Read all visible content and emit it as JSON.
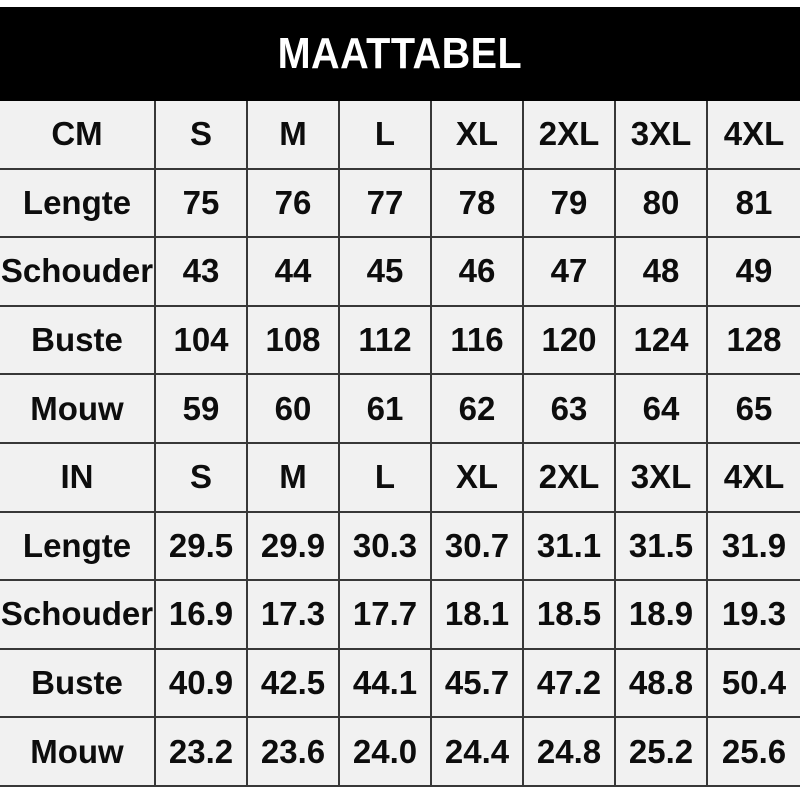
{
  "header": {
    "title": "MAATTABEL",
    "background_color": "#000000",
    "text_color": "#ffffff"
  },
  "size_table": {
    "rows": [
      [
        "CM",
        "S",
        "M",
        "L",
        "XL",
        "2XL",
        "3XL",
        "4XL"
      ],
      [
        "Lengte",
        "75",
        "76",
        "77",
        "78",
        "79",
        "80",
        "81"
      ],
      [
        "Schouder",
        "43",
        "44",
        "45",
        "46",
        "47",
        "48",
        "49"
      ],
      [
        "Buste",
        "104",
        "108",
        "112",
        "116",
        "120",
        "124",
        "128"
      ],
      [
        "Mouw",
        "59",
        "60",
        "61",
        "62",
        "63",
        "64",
        "65"
      ],
      [
        "IN",
        "S",
        "M",
        "L",
        "XL",
        "2XL",
        "3XL",
        "4XL"
      ],
      [
        "Lengte",
        "29.5",
        "29.9",
        "30.3",
        "30.7",
        "31.1",
        "31.5",
        "31.9"
      ],
      [
        "Schouder",
        "16.9",
        "17.3",
        "17.7",
        "18.1",
        "18.5",
        "18.9",
        "19.3"
      ],
      [
        "Buste",
        "40.9",
        "42.5",
        "44.1",
        "45.7",
        "47.2",
        "48.8",
        "50.4"
      ],
      [
        "Mouw",
        "23.2",
        "23.6",
        "24.0",
        "24.4",
        "24.8",
        "25.2",
        "25.6"
      ]
    ],
    "colors": {
      "cell_background": "#f1f1f1",
      "border": "#383838",
      "text": "#0d0d0d"
    }
  },
  "chart_data": {
    "type": "table",
    "title": "MAATTABEL",
    "sections": [
      {
        "unit": "CM",
        "sizes": [
          "S",
          "M",
          "L",
          "XL",
          "2XL",
          "3XL",
          "4XL"
        ],
        "rows": [
          {
            "label": "Lengte",
            "values": [
              75,
              76,
              77,
              78,
              79,
              80,
              81
            ]
          },
          {
            "label": "Schouder",
            "values": [
              43,
              44,
              45,
              46,
              47,
              48,
              49
            ]
          },
          {
            "label": "Buste",
            "values": [
              104,
              108,
              112,
              116,
              120,
              124,
              128
            ]
          },
          {
            "label": "Mouw",
            "values": [
              59,
              60,
              61,
              62,
              63,
              64,
              65
            ]
          }
        ]
      },
      {
        "unit": "IN",
        "sizes": [
          "S",
          "M",
          "L",
          "XL",
          "2XL",
          "3XL",
          "4XL"
        ],
        "rows": [
          {
            "label": "Lengte",
            "values": [
              29.5,
              29.9,
              30.3,
              30.7,
              31.1,
              31.5,
              31.9
            ]
          },
          {
            "label": "Schouder",
            "values": [
              16.9,
              17.3,
              17.7,
              18.1,
              18.5,
              18.9,
              19.3
            ]
          },
          {
            "label": "Buste",
            "values": [
              40.9,
              42.5,
              44.1,
              45.7,
              47.2,
              48.8,
              50.4
            ]
          },
          {
            "label": "Mouw",
            "values": [
              23.2,
              23.6,
              24.0,
              24.4,
              24.8,
              25.2,
              25.6
            ]
          }
        ]
      }
    ]
  }
}
